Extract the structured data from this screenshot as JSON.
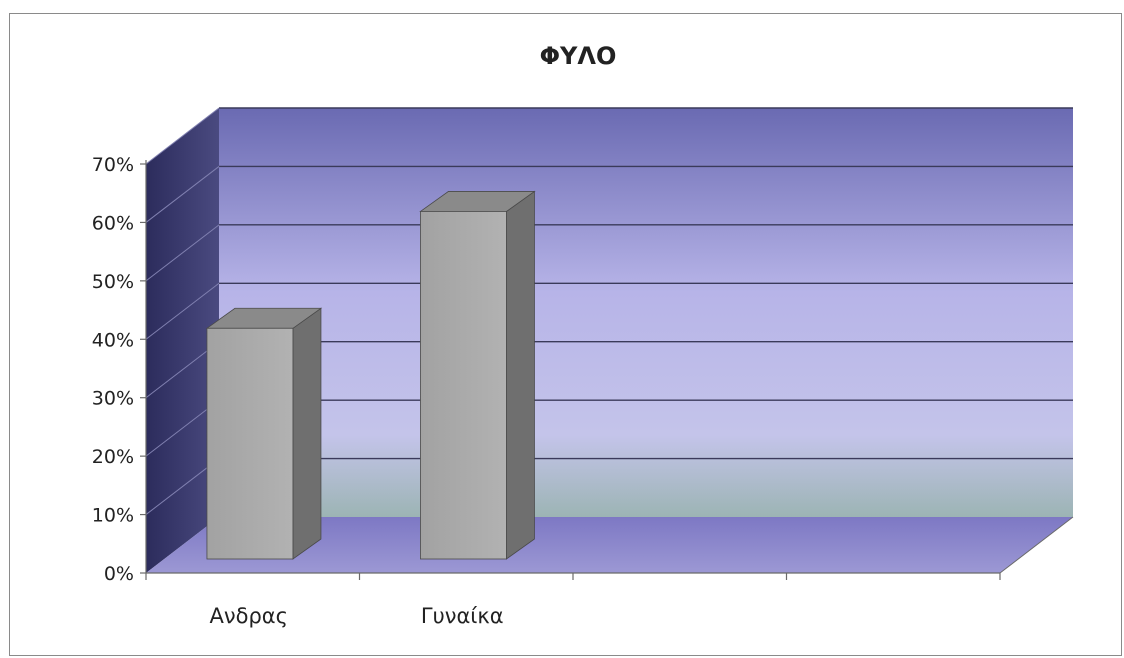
{
  "chart_data": {
    "type": "bar",
    "title": "ΦΥΛΟ",
    "categories": [
      "Ανδρας",
      "Γυναίκα",
      "",
      ""
    ],
    "values": [
      40,
      60,
      null,
      null
    ],
    "ylim": [
      0,
      70
    ],
    "yticks": [
      "0%",
      "10%",
      "20%",
      "30%",
      "40%",
      "50%",
      "60%",
      "70%"
    ],
    "xlabel": "",
    "ylabel": "",
    "grid": true,
    "style": "3d-column",
    "colors": {
      "bar_front": "#a8a8a8",
      "bar_side": "#6f6f6f",
      "bar_top": "#8a8a8a",
      "back_wall_top": "#6a6ab8",
      "back_wall_bottom": "#a8b8c0",
      "floor": "#8a86c8",
      "side_wall": "#3c3c72"
    }
  }
}
